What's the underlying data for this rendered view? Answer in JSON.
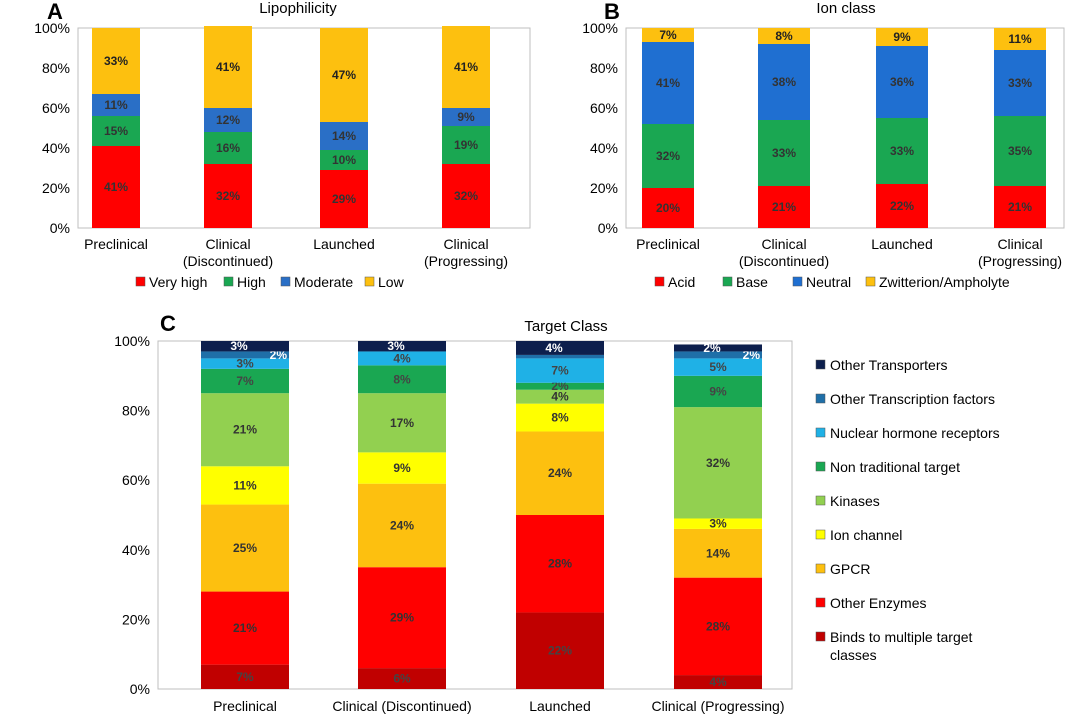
{
  "chart_data": [
    {
      "panel": "A",
      "type": "bar",
      "stacked": true,
      "title": "Lipophilicity",
      "categories": [
        "Preclinical",
        "Clinical\n(Discontinued)",
        "Launched",
        "Clinical\n(Progressing)"
      ],
      "ylim": [
        0,
        100
      ],
      "yticks": [
        "0%",
        "20%",
        "40%",
        "60%",
        "80%",
        "100%"
      ],
      "series": [
        {
          "name": "Very high",
          "color": "#ff0000",
          "values": [
            41,
            32,
            29,
            32
          ],
          "labels": [
            "41%",
            "32%",
            "29%",
            "32%"
          ]
        },
        {
          "name": "High",
          "color": "#1aa752",
          "values": [
            15,
            16,
            10,
            19
          ],
          "labels": [
            "15%",
            "16%",
            "10%",
            "19%"
          ]
        },
        {
          "name": "Moderate",
          "color": "#2a6fc6",
          "values": [
            11,
            12,
            14,
            9
          ],
          "labels": [
            "11%",
            "12%",
            "14%",
            "9%"
          ]
        },
        {
          "name": "Low",
          "color": "#fdc00f",
          "values": [
            33,
            41,
            47,
            41
          ],
          "labels": [
            "33%",
            "41%",
            "47%",
            "41%"
          ]
        }
      ]
    },
    {
      "panel": "B",
      "type": "bar",
      "stacked": true,
      "title": "Ion class",
      "categories": [
        "Preclinical",
        "Clinical\n(Discontinued)",
        "Launched",
        "Clinical\n(Progressing)"
      ],
      "ylim": [
        0,
        100
      ],
      "yticks": [
        "0%",
        "20%",
        "40%",
        "60%",
        "80%",
        "100%"
      ],
      "series": [
        {
          "name": "Acid",
          "color": "#ff0000",
          "values": [
            20,
            21,
            22,
            21
          ],
          "labels": [
            "20%",
            "21%",
            "22%",
            "21%"
          ]
        },
        {
          "name": "Base",
          "color": "#1aa752",
          "values": [
            32,
            33,
            33,
            35
          ],
          "labels": [
            "32%",
            "33%",
            "33%",
            "35%"
          ]
        },
        {
          "name": "Neutral",
          "color": "#1f6fd1",
          "values": [
            41,
            38,
            36,
            33
          ],
          "labels": [
            "41%",
            "38%",
            "36%",
            "33%"
          ]
        },
        {
          "name": "Zwitterion/Ampholyte",
          "color": "#fdc00f",
          "values": [
            7,
            8,
            9,
            11
          ],
          "labels": [
            "7%",
            "8%",
            "9%",
            "11%"
          ]
        }
      ]
    },
    {
      "panel": "C",
      "type": "bar",
      "stacked": true,
      "title": "Target Class",
      "categories": [
        "Preclinical",
        "Clinical (Discontinued)",
        "Launched",
        "Clinical (Progressing)"
      ],
      "ylim": [
        0,
        100
      ],
      "yticks": [
        "0%",
        "20%",
        "40%",
        "60%",
        "80%",
        "100%"
      ],
      "series": [
        {
          "name": "Binds to multiple target classes",
          "color": "#c00000",
          "values": [
            7,
            6,
            22,
            4
          ],
          "labels": [
            "7%",
            "6%",
            "22%",
            "4%"
          ]
        },
        {
          "name": "Other Enzymes",
          "color": "#ff0000",
          "values": [
            21,
            29,
            28,
            28
          ],
          "labels": [
            "21%",
            "29%",
            "28%",
            "28%"
          ]
        },
        {
          "name": "GPCR",
          "color": "#fdc00f",
          "values": [
            25,
            24,
            24,
            14
          ],
          "labels": [
            "25%",
            "24%",
            "24%",
            "14%"
          ]
        },
        {
          "name": "Ion channel",
          "color": "#ffff00",
          "values": [
            11,
            9,
            8,
            3
          ],
          "labels": [
            "11%",
            "9%",
            "8%",
            "3%"
          ]
        },
        {
          "name": "Kinases",
          "color": "#92d050",
          "values": [
            21,
            17,
            4,
            32
          ],
          "labels": [
            "21%",
            "17%",
            "4%",
            "32%"
          ]
        },
        {
          "name": "Non traditional target",
          "color": "#1aa752",
          "values": [
            7,
            8,
            2,
            9
          ],
          "labels": [
            "7%",
            "8%",
            "2%",
            "9%"
          ]
        },
        {
          "name": "Nuclear hormone receptors",
          "color": "#1fb1e6",
          "values": [
            3,
            4,
            7,
            5
          ],
          "labels": [
            "3%",
            "4%",
            "7%",
            "5%"
          ]
        },
        {
          "name": "Other Transcription factors",
          "color": "#1f6fa8",
          "values": [
            2,
            0,
            1,
            2
          ],
          "labels": [
            "2%",
            "",
            "",
            "2%"
          ]
        },
        {
          "name": "Other Transporters",
          "color": "#0d1f4d",
          "values": [
            3,
            3,
            4,
            2
          ],
          "labels": [
            "3%",
            "3%",
            "4%",
            "2%"
          ]
        }
      ]
    }
  ]
}
